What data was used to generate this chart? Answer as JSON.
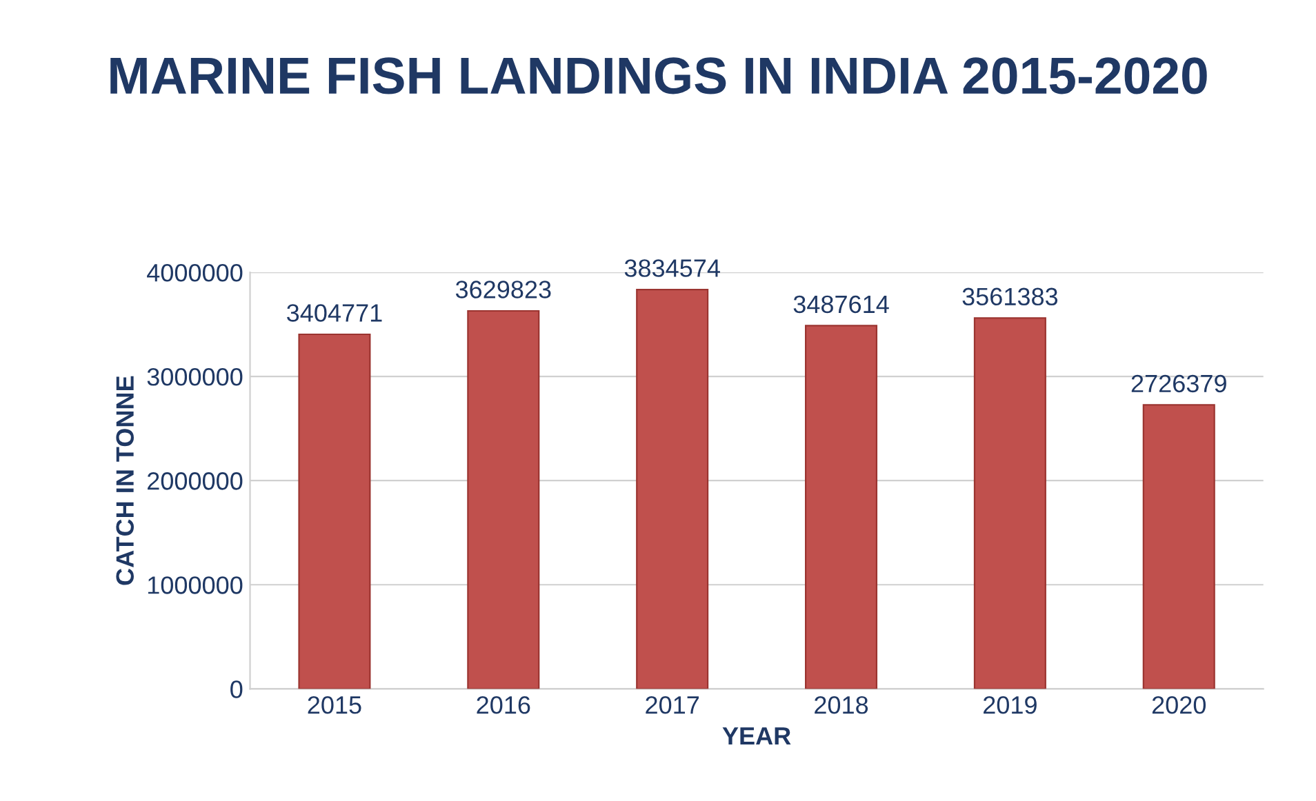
{
  "chart_data": {
    "type": "bar",
    "title": "MARINE FISH LANDINGS IN INDIA 2015-2020",
    "xlabel": "YEAR",
    "ylabel": "CATCH IN TONNE",
    "categories": [
      "2015",
      "2016",
      "2017",
      "2018",
      "2019",
      "2020"
    ],
    "values": [
      3404771,
      3629823,
      3834574,
      3487614,
      3561383,
      2726379
    ],
    "color": "#c0504d",
    "ylim": [
      0,
      4000000
    ],
    "yticks": [
      0,
      1000000,
      2000000,
      3000000,
      4000000
    ],
    "grid": "y",
    "data_labels": true
  }
}
